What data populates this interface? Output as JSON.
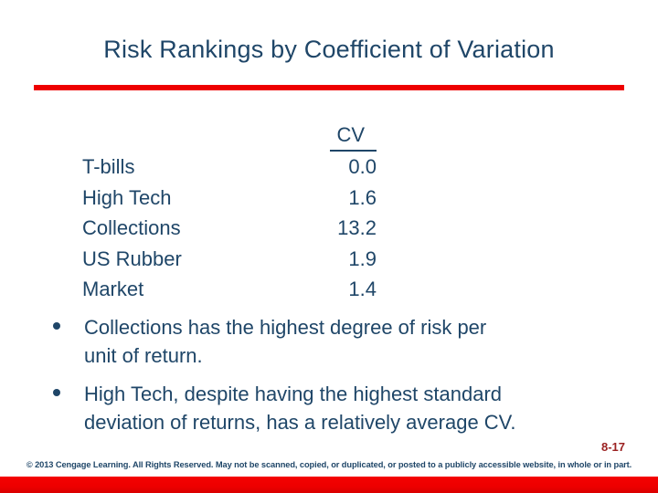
{
  "slide": {
    "title": "Risk Rankings by Coefficient of Variation",
    "page_number": "8-17",
    "copyright": "© 2013 Cengage Learning. All Rights Reserved. May not be scanned, copied, or duplicated, or posted to a publicly accessible website, in whole or in part."
  },
  "table": {
    "value_header": "CV",
    "rows": [
      {
        "label": "T-bills",
        "value": "0.0"
      },
      {
        "label": "High Tech",
        "value": "1.6"
      },
      {
        "label": "Collections",
        "value": "13.2"
      },
      {
        "label": "US Rubber",
        "value": "1.9"
      },
      {
        "label": "Market",
        "value": "1.4"
      }
    ]
  },
  "bullets": [
    "Collections has the highest degree of risk per\nunit of return.",
    "High Tech, despite having the highest standard\ndeviation of returns, has a relatively average CV."
  ],
  "colors": {
    "text_navy": "#1f4668",
    "accent_red": "#ee0000",
    "page_number_red": "#9b2121"
  }
}
